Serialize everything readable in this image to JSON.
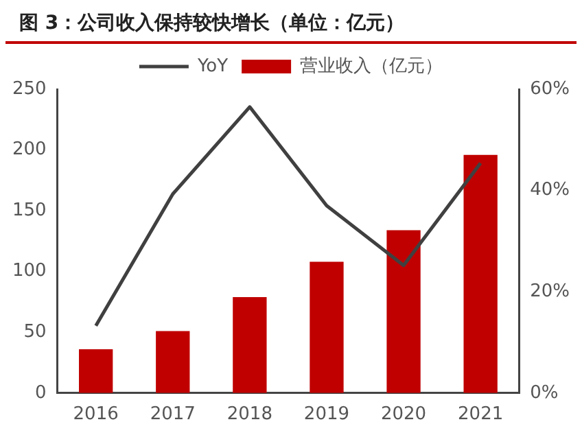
{
  "chart_data": {
    "type": "bar",
    "title": "图 3：公司收入保持较快增长（单位：亿元）",
    "categories": [
      "2016",
      "2017",
      "2018",
      "2019",
      "2020",
      "2021"
    ],
    "series": [
      {
        "name": "营业收入（亿元）",
        "color": "#c00000",
        "values": [
          36,
          51,
          79,
          108,
          134,
          196
        ]
      },
      {
        "name": "YoY",
        "type": "line",
        "axis": "y2",
        "color": "#404040",
        "values": [
          13.3,
          39.3,
          56.5,
          37,
          25.2,
          45.4
        ]
      }
    ],
    "ylim": [
      0,
      250
    ],
    "yticks": [
      0,
      50,
      100,
      150,
      200,
      250
    ],
    "y2lim": [
      0,
      60
    ],
    "y2ticks": [
      {
        "value": 0,
        "label": "0%"
      },
      {
        "value": 20,
        "label": "20%"
      },
      {
        "value": 40,
        "label": "40%"
      },
      {
        "value": 60,
        "label": "60%"
      }
    ],
    "grid": false,
    "legend": "top",
    "marker": "none",
    "line_style": "solid"
  }
}
